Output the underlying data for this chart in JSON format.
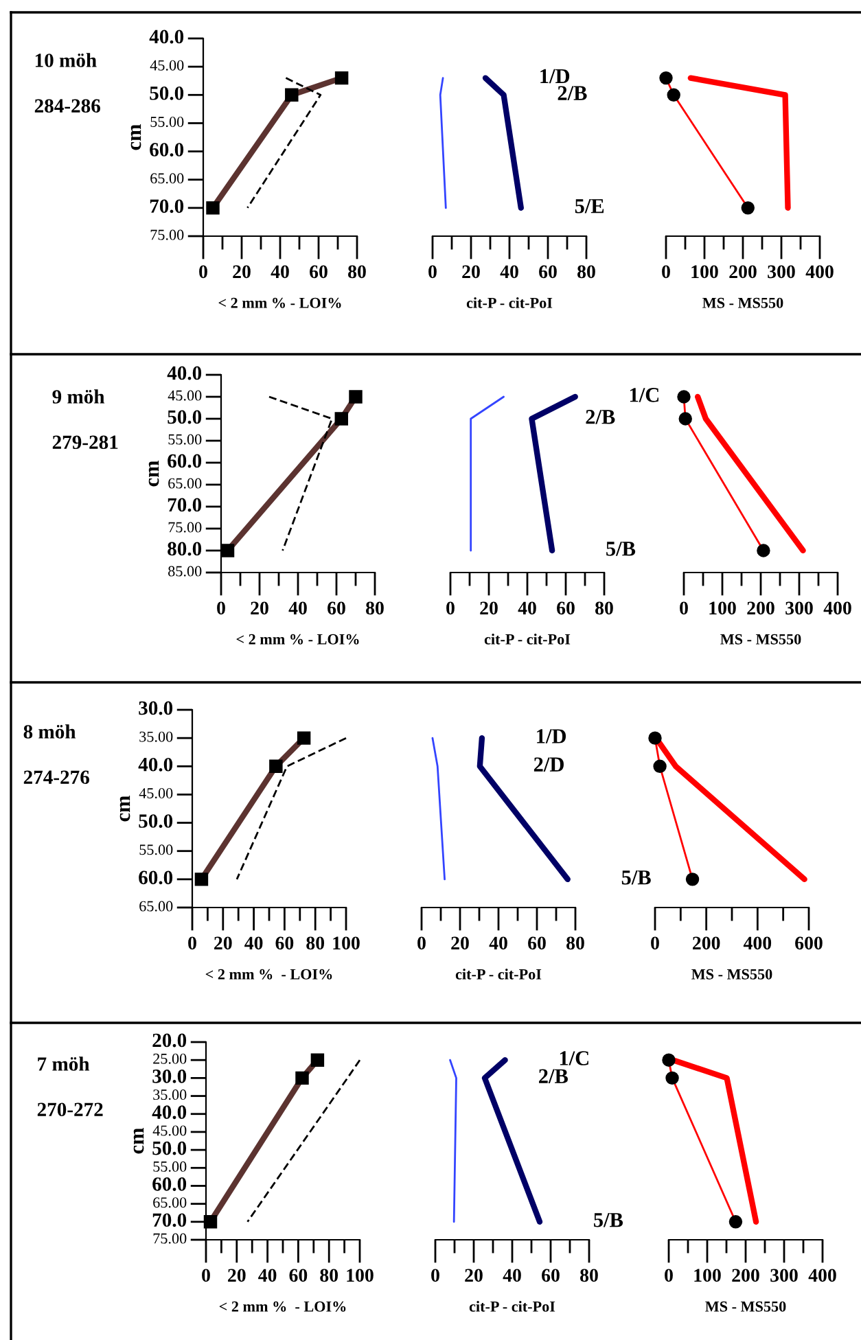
{
  "chart_data": [
    {
      "type": "line",
      "xlabel": "< 2 mm % - LOI%",
      "ylabel": "cm",
      "annotations": [
        "10 möh",
        "284-286"
      ],
      "xlim": [
        0,
        80
      ],
      "ylim": [
        75,
        40
      ],
      "xticks": [
        0,
        {
          "value": 10,
          "label": null
        },
        20,
        {
          "value": 30,
          "label": null
        },
        40,
        {
          "value": 50,
          "label": null
        },
        60,
        {
          "value": 70,
          "label": null
        },
        80
      ],
      "yticks": [
        {
          "value": 40,
          "label": "40.0"
        },
        {
          "value": 45,
          "label": "45.00"
        },
        {
          "value": 50,
          "label": "50.0"
        },
        {
          "value": 55,
          "label": "55.00"
        },
        {
          "value": 60,
          "label": "60.0"
        },
        {
          "value": 65,
          "label": "65.00"
        },
        {
          "value": 70,
          "label": "70.0"
        },
        {
          "value": 75,
          "label": "75.00"
        }
      ],
      "series": [
        {
          "color": "#5c3330",
          "marker": "square",
          "x": [
            72,
            46,
            5
          ],
          "values": [
            47,
            50,
            70
          ]
        },
        {
          "color": "#000000",
          "line_style": "dashed",
          "x": [
            43,
            61,
            23
          ],
          "values": [
            47,
            50,
            70
          ]
        }
      ]
    },
    {
      "type": "line",
      "xlabel": "cit-P - cit-PoI",
      "tick_labels": "x",
      "xlim": [
        0,
        80
      ],
      "xticks": [
        0,
        {
          "value": 10,
          "label": null
        },
        20,
        {
          "value": 30,
          "label": null
        },
        40,
        {
          "value": 50,
          "label": null
        },
        60,
        {
          "value": 70,
          "label": null
        },
        80
      ],
      "ylim": [
        75,
        40
      ],
      "annotations": [
        "1/D",
        "2/B",
        "5/E"
      ],
      "series": [
        {
          "color": "#000066",
          "x": [
            27.5,
            37,
            46
          ],
          "values": [
            47,
            50,
            70
          ]
        },
        {
          "color": "#3344ff",
          "x": [
            5.4,
            4,
            6.9
          ],
          "values": [
            47,
            50,
            70
          ]
        }
      ]
    },
    {
      "type": "line",
      "xlabel": "MS - MS550",
      "tick_labels": "x",
      "xlim": [
        0,
        400
      ],
      "ylim": [
        75,
        40
      ],
      "xticks": [
        0,
        {
          "value": 50,
          "label": null
        },
        100,
        {
          "value": 150,
          "label": null
        },
        200,
        {
          "value": 250,
          "label": null
        },
        300,
        {
          "value": 350,
          "label": null
        },
        400
      ],
      "series": [
        {
          "color": "#ff0000",
          "x": [
            64,
            310,
            317
          ],
          "values": [
            47,
            50,
            70
          ]
        },
        {
          "color": "#ff0000",
          "marker": "circle",
          "x": [
            0,
            20,
            213
          ],
          "values": [
            47,
            50,
            70
          ]
        }
      ]
    },
    {
      "type": "line",
      "xlabel": "< 2 mm % - LOI%",
      "ylabel": "cm",
      "annotations": [
        "9 möh",
        "279-281"
      ],
      "xlim": [
        0,
        80
      ],
      "ylim": [
        85,
        40
      ],
      "xticks": [
        0,
        {
          "value": 10,
          "label": null
        },
        20,
        {
          "value": 30,
          "label": null
        },
        40,
        {
          "value": 50,
          "label": null
        },
        60,
        {
          "value": 70,
          "label": null
        },
        80
      ],
      "yticks": [
        {
          "value": 40,
          "label": "40.0"
        },
        {
          "value": 45,
          "label": "45.00"
        },
        {
          "value": 50,
          "label": "50.0"
        },
        {
          "value": 55,
          "label": "55.00"
        },
        {
          "value": 60,
          "label": "60.0"
        },
        {
          "value": 65,
          "label": "65.00"
        },
        {
          "value": 70,
          "label": "70.0"
        },
        {
          "value": 75,
          "label": "75.00"
        },
        {
          "value": 80,
          "label": "80.0"
        },
        {
          "value": 85,
          "label": "85.00"
        }
      ],
      "series": [
        {
          "color": "#5c3330",
          "marker": "square",
          "x": [
            70,
            62.6,
            3.4
          ],
          "values": [
            45,
            50,
            80
          ]
        },
        {
          "color": "#000000",
          "line_style": "dashed",
          "x": [
            25,
            57.7,
            32
          ],
          "values": [
            45,
            50,
            80
          ]
        }
      ]
    },
    {
      "type": "line",
      "xlabel": "cit-P - cit-PoI",
      "tick_labels": "x",
      "xlim": [
        0,
        80
      ],
      "xticks": [
        0,
        {
          "value": 10,
          "label": null
        },
        20,
        {
          "value": 30,
          "label": null
        },
        40,
        {
          "value": 50,
          "label": null
        },
        60,
        {
          "value": 70,
          "label": null
        },
        80
      ],
      "ylim": [
        85,
        40
      ],
      "annotations": [
        "1/C",
        "2/B",
        "5/B"
      ],
      "series": [
        {
          "color": "#000066",
          "x": [
            64.9,
            42.3,
            52.9
          ],
          "values": [
            45,
            50,
            80
          ]
        },
        {
          "color": "#3344ff",
          "x": [
            27.7,
            10.6,
            10.6
          ],
          "values": [
            45,
            50,
            80
          ]
        }
      ]
    },
    {
      "type": "line",
      "xlabel": "MS - MS550",
      "tick_labels": "x",
      "xlim": [
        0,
        400
      ],
      "ylim": [
        85,
        40
      ],
      "xticks": [
        0,
        {
          "value": 50,
          "label": null
        },
        100,
        {
          "value": 150,
          "label": null
        },
        200,
        {
          "value": 250,
          "label": null
        },
        300,
        {
          "value": 350,
          "label": null
        },
        400
      ],
      "series": [
        {
          "color": "#ff0000",
          "x": [
            36,
            57,
            310
          ],
          "values": [
            45,
            50,
            80
          ]
        },
        {
          "color": "#ff0000",
          "marker": "circle",
          "x": [
            0,
            4,
            207
          ],
          "values": [
            45,
            50,
            80
          ]
        }
      ]
    },
    {
      "type": "line",
      "xlabel": "< 2 mm %  - LOI%",
      "ylabel": "cm",
      "annotations": [
        "8 möh",
        "274-276"
      ],
      "xlim": [
        0,
        100
      ],
      "ylim": [
        65,
        30
      ],
      "xticks": [
        0,
        {
          "value": 10,
          "label": null
        },
        20,
        {
          "value": 30,
          "label": null
        },
        40,
        {
          "value": 50,
          "label": null
        },
        60,
        {
          "value": 70,
          "label": null
        },
        80,
        {
          "value": 90,
          "label": null
        },
        100
      ],
      "yticks": [
        {
          "value": 30,
          "label": "30.0"
        },
        {
          "value": 35,
          "label": "35.00"
        },
        {
          "value": 40,
          "label": "40.0"
        },
        {
          "value": 45,
          "label": "45.00"
        },
        {
          "value": 50,
          "label": "50.0"
        },
        {
          "value": 55,
          "label": "55.00"
        },
        {
          "value": 60,
          "label": "60.0"
        },
        {
          "value": 65,
          "label": "65.00"
        }
      ],
      "series": [
        {
          "color": "#5c3330",
          "marker": "square",
          "x": [
            72.6,
            54.4,
            6
          ],
          "values": [
            35,
            40,
            60
          ]
        },
        {
          "color": "#000000",
          "line_style": "dashed",
          "x": [
            100,
            61.6,
            29
          ],
          "values": [
            35,
            40,
            60
          ]
        }
      ]
    },
    {
      "type": "line",
      "xlabel": "cit-P - cit-PoI",
      "tick_labels": "x",
      "xlim": [
        0,
        80
      ],
      "xticks": [
        0,
        {
          "value": 10,
          "label": null
        },
        20,
        {
          "value": 30,
          "label": null
        },
        40,
        {
          "value": 50,
          "label": null
        },
        60,
        {
          "value": 70,
          "label": null
        },
        80
      ],
      "ylim": [
        65,
        30
      ],
      "annotations": [
        "1/D",
        "2/D",
        "5/B"
      ],
      "series": [
        {
          "color": "#000066",
          "x": [
            31.4,
            30.3,
            76
          ],
          "values": [
            35,
            40,
            60
          ]
        },
        {
          "color": "#3344ff",
          "x": [
            5.7,
            8.3,
            12
          ],
          "values": [
            35,
            40,
            60
          ]
        }
      ]
    },
    {
      "type": "line",
      "xlabel": "MS - MS550",
      "tick_labels": "x",
      "xlim": [
        0,
        600
      ],
      "ylim": [
        65,
        30
      ],
      "xticks": [
        0,
        {
          "value": 100,
          "label": null
        },
        200,
        {
          "value": 300,
          "label": null
        },
        400,
        {
          "value": 500,
          "label": null
        },
        600
      ],
      "series": [
        {
          "color": "#ff0000",
          "x": [
            4,
            81,
            583
          ],
          "values": [
            35,
            40,
            60
          ]
        },
        {
          "color": "#ff0000",
          "marker": "circle",
          "x": [
            0,
            19,
            146
          ],
          "values": [
            35,
            40,
            60
          ]
        }
      ]
    },
    {
      "type": "line",
      "xlabel": "< 2 mm %  - LOI%",
      "ylabel": "cm",
      "annotations": [
        "7 möh",
        "270-272"
      ],
      "xlim": [
        0,
        100
      ],
      "ylim": [
        75,
        20
      ],
      "xticks": [
        0,
        {
          "value": 10,
          "label": null
        },
        20,
        {
          "value": 30,
          "label": null
        },
        40,
        {
          "value": 50,
          "label": null
        },
        60,
        {
          "value": 70,
          "label": null
        },
        80,
        {
          "value": 90,
          "label": null
        },
        100
      ],
      "yticks": [
        {
          "value": 20,
          "label": "20.0"
        },
        {
          "value": 25,
          "label": "25.00"
        },
        {
          "value": 30,
          "label": "30.0"
        },
        {
          "value": 35,
          "label": "35.00"
        },
        {
          "value": 40,
          "label": "40.0"
        },
        {
          "value": 45,
          "label": "45.00"
        },
        {
          "value": 50,
          "label": "50.0"
        },
        {
          "value": 55,
          "label": "55.00"
        },
        {
          "value": 60,
          "label": "60.0"
        },
        {
          "value": 65,
          "label": "65.00"
        },
        {
          "value": 70,
          "label": "70.0"
        },
        {
          "value": 75,
          "label": "75.00"
        }
      ],
      "series": [
        {
          "color": "#5c3330",
          "marker": "square",
          "x": [
            72.5,
            62.5,
            2.9
          ],
          "values": [
            25,
            30,
            70
          ]
        },
        {
          "color": "#000000",
          "line_style": "dashed",
          "x": [
            100,
            92,
            27
          ],
          "values": [
            25,
            30,
            70
          ]
        }
      ]
    },
    {
      "type": "line",
      "xlabel": "cit-P - cit-PoI",
      "tick_labels": "x",
      "xlim": [
        0,
        80
      ],
      "xticks": [
        0,
        {
          "value": 10,
          "label": null
        },
        20,
        {
          "value": 30,
          "label": null
        },
        40,
        {
          "value": 50,
          "label": null
        },
        60,
        {
          "value": 70,
          "label": null
        },
        80
      ],
      "ylim": [
        75,
        20
      ],
      "annotations": [
        "1/C",
        "2/B",
        "5/B"
      ],
      "series": [
        {
          "color": "#000066",
          "x": [
            36.3,
            25.7,
            54.3
          ],
          "values": [
            25,
            30,
            70
          ]
        },
        {
          "color": "#3344ff",
          "x": [
            7.7,
            10.9,
            9.7
          ],
          "values": [
            25,
            30,
            70
          ]
        }
      ]
    },
    {
      "type": "line",
      "xlabel": "MS - MS550",
      "tick_labels": "x",
      "xlim": [
        0,
        400
      ],
      "ylim": [
        75,
        20
      ],
      "xticks": [
        0,
        {
          "value": 50,
          "label": null
        },
        100,
        {
          "value": 150,
          "label": null
        },
        200,
        {
          "value": 250,
          "label": null
        },
        300,
        {
          "value": 350,
          "label": null
        },
        400
      ],
      "series": [
        {
          "color": "#ff0000",
          "x": [
            11,
            151,
            227
          ],
          "values": [
            25,
            30,
            70
          ]
        },
        {
          "color": "#ff0000",
          "marker": "circle",
          "x": [
            0,
            9,
            174
          ],
          "values": [
            25,
            30,
            70
          ]
        }
      ]
    }
  ]
}
